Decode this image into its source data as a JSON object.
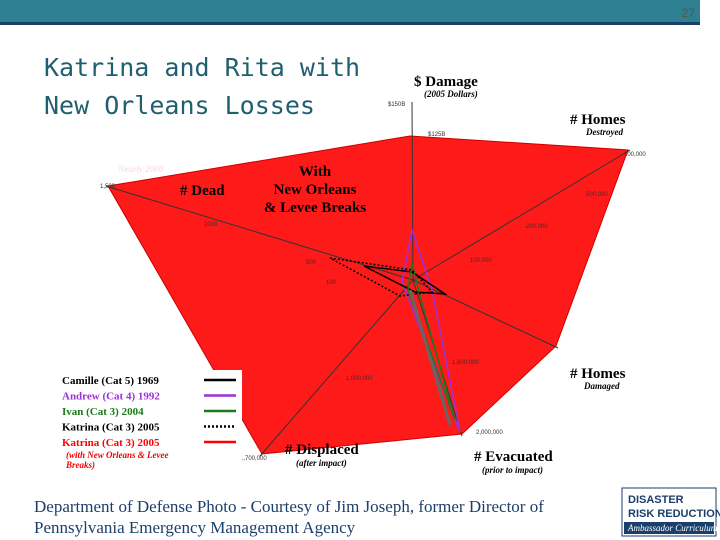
{
  "header": {
    "page_number": "27"
  },
  "title": {
    "lines": [
      "Katrina and Rita with",
      "New Orleans Losses"
    ]
  },
  "chart": {
    "axes": {
      "damage": [
        "$ Damage",
        "(2005 Dollars)"
      ],
      "homes_destroyed": [
        "# Homes",
        "Destroyed"
      ],
      "dead": [
        "# Dead"
      ],
      "homes_damaged": [
        "# Homes",
        "Damaged"
      ],
      "evacuated": [
        "# Evacuated",
        "(prior to impact)"
      ],
      "displaced": [
        "# Displaced",
        "(after impact)"
      ]
    },
    "annotation": "Nearly 2000",
    "center_note": [
      "With",
      "New Orleans",
      "& Levee Breaks"
    ],
    "tick_labels": [
      "$150B",
      "$125B",
      "1,500",
      "1000",
      "500",
      "100",
      "100,000",
      "500,000",
      "200,000",
      "100,000",
      "1,600,000",
      "1,000,000",
      "2,000,000",
      "1,700,000"
    ],
    "legend": {
      "items": [
        {
          "name": "Camille (Cat 5) 1969",
          "color": "#000000",
          "dash": false
        },
        {
          "name": "Andrew (Cat 4) 1992",
          "color": "#9b30d9",
          "dash": false
        },
        {
          "name": "Ivan (Cat 3) 2004",
          "color": "#1a7a1a",
          "dash": false
        },
        {
          "name": "Katrina (Cat 3) 2005",
          "color": "#000000",
          "dash": true
        },
        {
          "name": "Katrina (Cat 3) 2005",
          "color": "#ff0000",
          "dash": false
        }
      ],
      "note": [
        "(with New Orleans & Levee",
        "Breaks)"
      ]
    }
  },
  "caption": {
    "lines": [
      "Department of Defense Photo - Courtesy of Jim Joseph, former Director of",
      "Pennsylvania Emergency Management Agency"
    ]
  },
  "logo": {
    "lines": [
      "DISASTER",
      "RISK REDUCTION",
      "Ambassador Curriculum"
    ]
  }
}
